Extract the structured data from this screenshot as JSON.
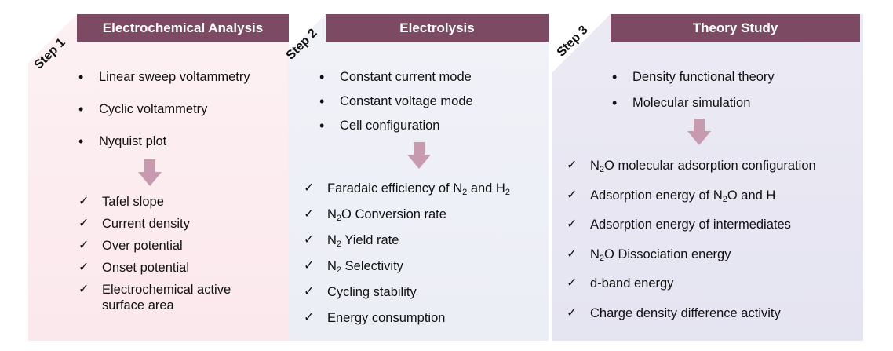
{
  "colors": {
    "header": "#7d4a63",
    "panel1": "#fbe9ec",
    "panel2": "#eef0f7",
    "panel3": "#e7e6f2",
    "arrow": "#c79ab0"
  },
  "icons": {
    "down_arrow": "down-arrow-icon",
    "check": "check-icon"
  },
  "steps": [
    {
      "step_label": "Step 1",
      "title": "Electrochemical Analysis",
      "methods": [
        "Linear sweep voltammetry",
        "Cyclic voltammetry",
        "Nyquist plot"
      ],
      "outputs": [
        {
          "pre": "Tafel slope"
        },
        {
          "pre": "Current density"
        },
        {
          "pre": "Over potential"
        },
        {
          "pre": "Onset potential"
        },
        {
          "pre": "Electrochemical active"
        },
        {
          "pre": "surface area",
          "continuation": true
        }
      ]
    },
    {
      "step_label": "Step 2",
      "title": "Electrolysis",
      "methods": [
        "Constant current mode",
        "Constant voltage mode",
        "Cell configuration"
      ],
      "outputs": [
        {
          "pre": "Faradaic efficiency of N",
          "sub": "2",
          "mid": " and H",
          "sub2": "2"
        },
        {
          "pre": "N",
          "sub": "2",
          "mid": "O Conversion rate"
        },
        {
          "pre": "N",
          "sub": "2",
          "mid": " Yield rate"
        },
        {
          "pre": "N",
          "sub": "2",
          "mid": " Selectivity"
        },
        {
          "pre": "Cycling stability"
        },
        {
          "pre": "Energy consumption"
        }
      ]
    },
    {
      "step_label": "Step 3",
      "title": "Theory Study",
      "methods": [
        "Density functional theory",
        "Molecular simulation"
      ],
      "outputs": [
        {
          "pre": "N",
          "sub": "2",
          "mid": "O molecular adsorption configuration"
        },
        {
          "pre": "Adsorption energy of N",
          "sub": "2",
          "mid": "O and H"
        },
        {
          "pre": "Adsorption energy of intermediates"
        },
        {
          "pre": "N",
          "sub": "2",
          "mid": "O Dissociation energy"
        },
        {
          "pre": "d-band energy"
        },
        {
          "pre": "Charge density difference activity"
        }
      ]
    }
  ]
}
